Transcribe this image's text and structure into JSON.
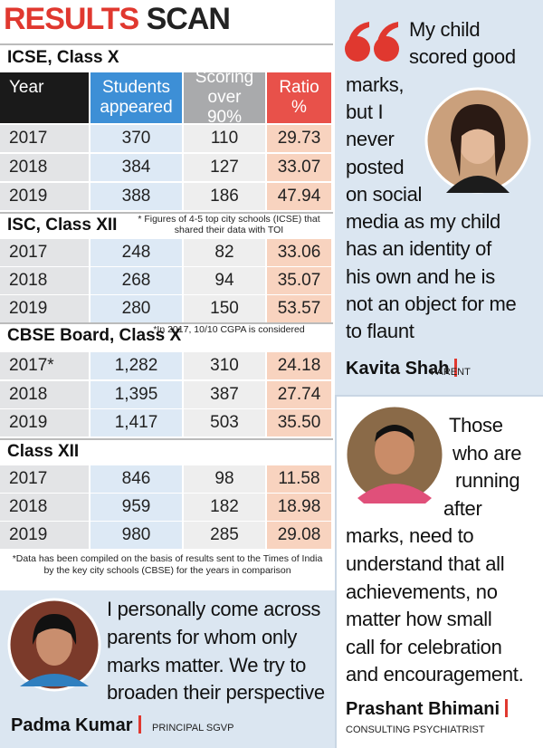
{
  "header": {
    "title_part1": "RESULTS",
    "title_part2": "SCAN"
  },
  "table": {
    "columns": [
      "Year",
      "Students appeared",
      "Scoring over 90%",
      "Ratio %"
    ],
    "sections": [
      {
        "title": "ICSE, Class X",
        "rows": [
          [
            "2017",
            "370",
            "110",
            "29.73"
          ],
          [
            "2018",
            "384",
            "127",
            "33.07"
          ],
          [
            "2019",
            "388",
            "186",
            "47.94"
          ]
        ]
      },
      {
        "title": "ISC, Class XII",
        "note": "* Figures of 4-5 top city schools (ICSE) that shared their data with TOI",
        "rows": [
          [
            "2017",
            "248",
            "82",
            "33.06"
          ],
          [
            "2018",
            "268",
            "94",
            "35.07"
          ],
          [
            "2019",
            "280",
            "150",
            "53.57"
          ]
        ]
      },
      {
        "title": "CBSE Board, Class X",
        "note": "*In 2017, 10/10 CGPA is considered",
        "rows": [
          [
            "2017*",
            "1,282",
            "310",
            "24.18"
          ],
          [
            "2018",
            "1,395",
            "387",
            "27.74"
          ],
          [
            "2019",
            "1,417",
            "503",
            "35.50"
          ]
        ]
      },
      {
        "title": "Class XII",
        "rows": [
          [
            "2017",
            "846",
            "98",
            "11.58"
          ],
          [
            "2018",
            "959",
            "182",
            "18.98"
          ],
          [
            "2019",
            "980",
            "285",
            "29.08"
          ]
        ]
      }
    ],
    "footnote": "*Data has been compiled on the basis of results sent to the Times of India by the key city schools (CBSE) for the years in comparison"
  },
  "quotes": [
    {
      "lines": [
        "My child",
        "scored good",
        "marks,",
        "but I",
        "never",
        "posted",
        "on social",
        "media as my child",
        "has an identity of",
        "his own and he is",
        "not an object for me",
        "to flaunt"
      ],
      "name": "Kavita Shah",
      "role": "PARENT"
    },
    {
      "lines": [
        "Those",
        "who are",
        "running",
        "after",
        "marks, need to",
        "understand that all",
        "achievements, no",
        "matter how small",
        "call for celebration",
        "and encouragement."
      ],
      "name": "Prashant Bhimani",
      "role": "CONSULTING PSYCHIATRIST"
    },
    {
      "lines": [
        "I personally come across",
        "parents for whom only",
        "marks matter. We try to",
        "broaden their perspective"
      ],
      "name": "Padma Kumar",
      "role": "PRINCIPAL SGVP"
    }
  ]
}
